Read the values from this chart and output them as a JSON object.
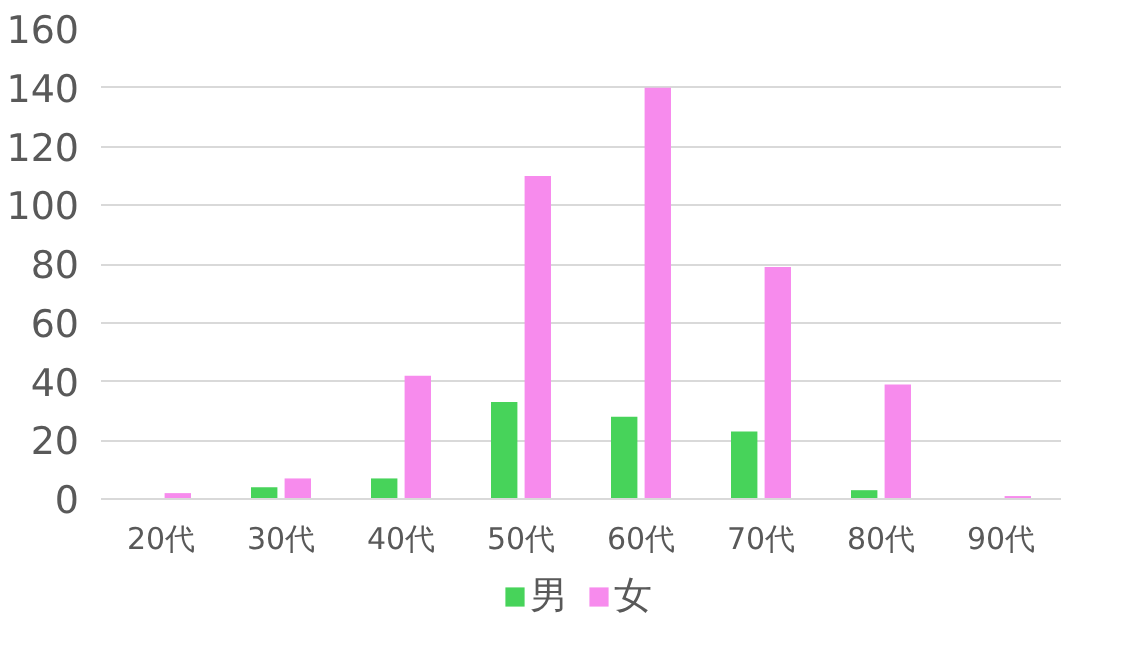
{
  "chart_data": {
    "type": "bar",
    "categories": [
      "20代",
      "30代",
      "40代",
      "50代",
      "60代",
      "70代",
      "80代",
      "90代"
    ],
    "series": [
      {
        "name": "男",
        "color": "#47d35a",
        "values": [
          0,
          4,
          7,
          33,
          28,
          23,
          3,
          0
        ]
      },
      {
        "name": "女",
        "color": "#f78bed",
        "values": [
          2,
          7,
          42,
          110,
          140,
          79,
          39,
          1
        ]
      }
    ],
    "ylim": [
      0,
      160
    ],
    "yticks": [
      0,
      20,
      40,
      60,
      80,
      100,
      120,
      140,
      160
    ],
    "grid": "y",
    "legend": "bottom"
  }
}
